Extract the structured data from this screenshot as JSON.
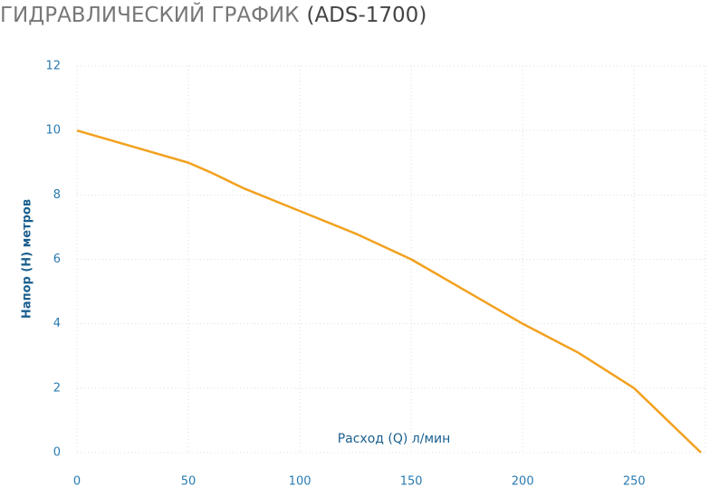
{
  "chart_data": {
    "type": "line",
    "title": "ГИДРАВЛИЧЕСКИЙ ГРАФИК",
    "subtitle": "(ADS-1700)",
    "x_label": "Расход (Q) л/мин",
    "y_label": "Напор (H) метров",
    "x": [
      0,
      25,
      50,
      60,
      75,
      100,
      125,
      150,
      175,
      200,
      225,
      250,
      265,
      280
    ],
    "series": [
      {
        "name": "ADS-1700",
        "color": "#f2a11f",
        "values": [
          10,
          9.5,
          9,
          8.7,
          8.2,
          7.5,
          6.8,
          6,
          5,
          4,
          3.1,
          2,
          1,
          0
        ]
      }
    ],
    "xlim": [
      0,
      282
    ],
    "xticks": [
      0,
      50,
      100,
      150,
      200,
      250
    ],
    "ylim": [
      0,
      12
    ],
    "yticks": [
      0,
      2,
      4,
      6,
      8,
      10,
      12
    ],
    "grid": true
  }
}
